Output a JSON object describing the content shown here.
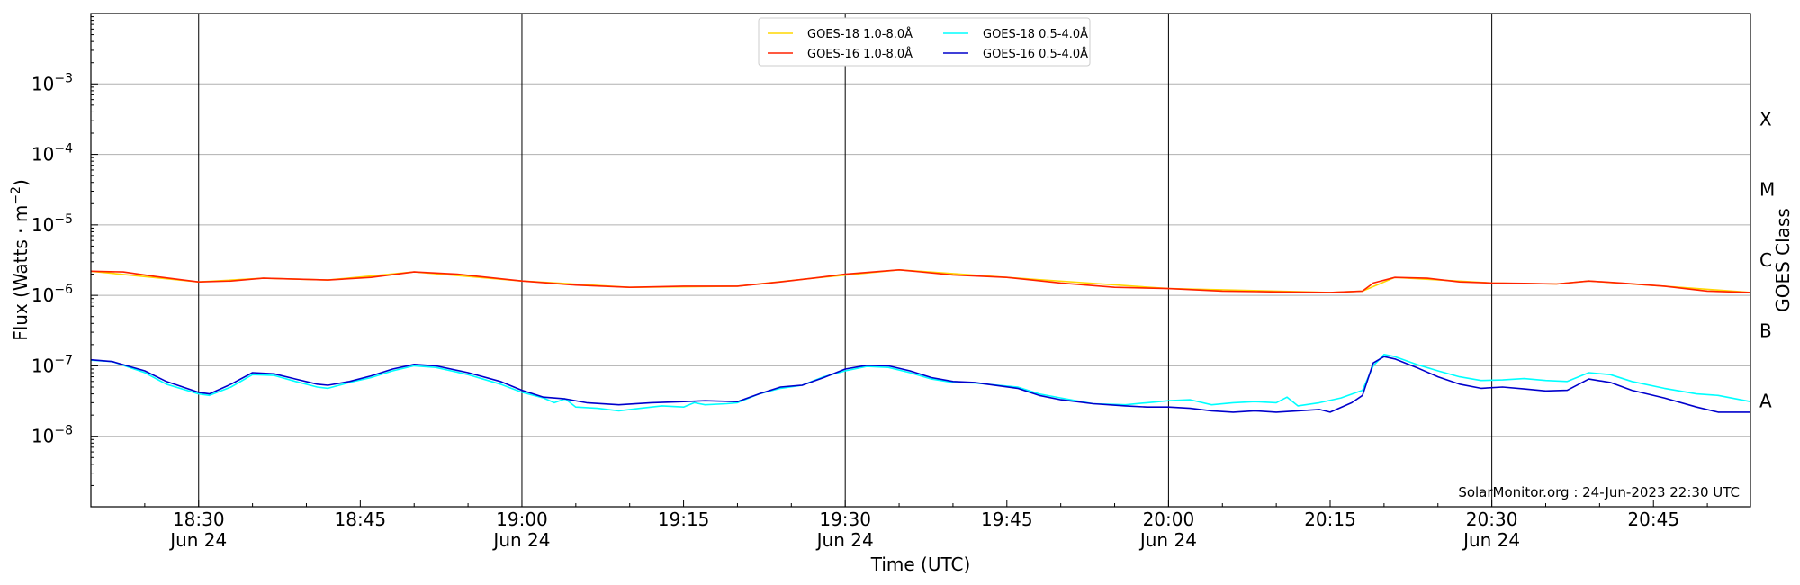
{
  "chart_data": {
    "type": "line",
    "title": "",
    "xlabel": "Time (UTC)",
    "ylabel": "Flux (Watts · m⁻²)",
    "ylabel_right": "GOES Class",
    "y_scale": "log",
    "ylim": [
      "1e-9",
      "1e-2"
    ],
    "x_range": [
      "18:20",
      "20:54"
    ],
    "grid": "horizontal at decades, vertical at half-hours",
    "legend_placement": "top-center",
    "x_ticks": [
      {
        "t": "18:30",
        "label": "18:30",
        "sub": "Jun 24"
      },
      {
        "t": "18:45",
        "label": "18:45",
        "sub": ""
      },
      {
        "t": "19:00",
        "label": "19:00",
        "sub": "Jun 24"
      },
      {
        "t": "19:15",
        "label": "19:15",
        "sub": ""
      },
      {
        "t": "19:30",
        "label": "19:30",
        "sub": "Jun 24"
      },
      {
        "t": "19:45",
        "label": "19:45",
        "sub": ""
      },
      {
        "t": "20:00",
        "label": "20:00",
        "sub": "Jun 24"
      },
      {
        "t": "20:15",
        "label": "20:15",
        "sub": ""
      },
      {
        "t": "20:30",
        "label": "20:30",
        "sub": "Jun 24"
      },
      {
        "t": "20:45",
        "label": "20:45",
        "sub": ""
      }
    ],
    "y_ticks": [
      {
        "exp": -8,
        "base": "10",
        "sup": "−8"
      },
      {
        "exp": -7,
        "base": "10",
        "sup": "−7"
      },
      {
        "exp": -6,
        "base": "10",
        "sup": "−6"
      },
      {
        "exp": -5,
        "base": "10",
        "sup": "−5"
      },
      {
        "exp": -4,
        "base": "10",
        "sup": "−4"
      },
      {
        "exp": -3,
        "base": "10",
        "sup": "−3"
      }
    ],
    "goes_classes": [
      {
        "label": "A",
        "exp": -7.5
      },
      {
        "label": "B",
        "exp": -6.5
      },
      {
        "label": "C",
        "exp": -5.5
      },
      {
        "label": "M",
        "exp": -4.5
      },
      {
        "label": "X",
        "exp": -3.5
      }
    ],
    "series": [
      {
        "name": "GOES-18 1.0-8.0Å",
        "color": "#FFD700",
        "points": [
          [
            "18:20",
            "2.2e-6"
          ],
          [
            "18:30",
            "1.55e-6"
          ],
          [
            "18:36",
            "1.75e-6"
          ],
          [
            "18:42",
            "1.65e-6"
          ],
          [
            "18:50",
            "2.15e-6"
          ],
          [
            "19:00",
            "1.6e-6"
          ],
          [
            "19:10",
            "1.3e-6"
          ],
          [
            "19:20",
            "1.35e-6"
          ],
          [
            "19:27",
            "1.75e-6"
          ],
          [
            "19:35",
            "2.3e-6"
          ],
          [
            "19:45",
            "1.8e-6"
          ],
          [
            "20:00",
            "1.25e-6"
          ],
          [
            "20:15",
            "1.1e-6"
          ],
          [
            "20:18",
            "1.15e-6"
          ],
          [
            "20:21",
            "1.8e-6"
          ],
          [
            "20:30",
            "1.5e-6"
          ],
          [
            "20:36",
            "1.45e-6"
          ],
          [
            "20:39",
            "1.6e-6"
          ],
          [
            "20:46",
            "1.35e-6"
          ],
          [
            "20:54",
            "1.1e-6"
          ]
        ]
      },
      {
        "name": "GOES-16 1.0-8.0Å",
        "color": "#FF2200",
        "points": [
          [
            "18:20",
            "2.2e-6"
          ],
          [
            "18:23",
            "2.15e-6"
          ],
          [
            "18:26",
            "1.85e-6"
          ],
          [
            "18:30",
            "1.55e-6"
          ],
          [
            "18:33",
            "1.6e-6"
          ],
          [
            "18:36",
            "1.75e-6"
          ],
          [
            "18:39",
            "1.7e-6"
          ],
          [
            "18:42",
            "1.65e-6"
          ],
          [
            "18:46",
            "1.8e-6"
          ],
          [
            "18:50",
            "2.15e-6"
          ],
          [
            "18:54",
            "2.0e-6"
          ],
          [
            "19:00",
            "1.6e-6"
          ],
          [
            "19:05",
            "1.4e-6"
          ],
          [
            "19:10",
            "1.3e-6"
          ],
          [
            "19:15",
            "1.35e-6"
          ],
          [
            "19:20",
            "1.35e-6"
          ],
          [
            "19:24",
            "1.55e-6"
          ],
          [
            "19:27",
            "1.75e-6"
          ],
          [
            "19:30",
            "2.0e-6"
          ],
          [
            "19:35",
            "2.3e-6"
          ],
          [
            "19:40",
            "1.95e-6"
          ],
          [
            "19:45",
            "1.8e-6"
          ],
          [
            "19:50",
            "1.5e-6"
          ],
          [
            "19:55",
            "1.3e-6"
          ],
          [
            "20:00",
            "1.25e-6"
          ],
          [
            "20:05",
            "1.15e-6"
          ],
          [
            "20:10",
            "1.12e-6"
          ],
          [
            "20:15",
            "1.1e-6"
          ],
          [
            "20:18",
            "1.15e-6"
          ],
          [
            "20:19",
            "1.5e-6"
          ],
          [
            "20:21",
            "1.8e-6"
          ],
          [
            "20:24",
            "1.75e-6"
          ],
          [
            "20:27",
            "1.55e-6"
          ],
          [
            "20:30",
            "1.5e-6"
          ],
          [
            "20:33",
            "1.48e-6"
          ],
          [
            "20:36",
            "1.45e-6"
          ],
          [
            "20:39",
            "1.6e-6"
          ],
          [
            "20:42",
            "1.5e-6"
          ],
          [
            "20:46",
            "1.35e-6"
          ],
          [
            "20:50",
            "1.15e-6"
          ],
          [
            "20:54",
            "1.1e-6"
          ]
        ]
      },
      {
        "name": "GOES-18 0.5-4.0Å",
        "color": "#00FFFF",
        "points": [
          [
            "18:20",
            "1.2e-7"
          ],
          [
            "18:22",
            "1.15e-7"
          ],
          [
            "18:25",
            "8.0e-8"
          ],
          [
            "18:27",
            "5.5e-8"
          ],
          [
            "18:30",
            "4.0e-8"
          ],
          [
            "18:31",
            "3.8e-8"
          ],
          [
            "18:33",
            "5.0e-8"
          ],
          [
            "18:35",
            "7.5e-8"
          ],
          [
            "18:37",
            "7.3e-8"
          ],
          [
            "18:39",
            "6.0e-8"
          ],
          [
            "18:41",
            "5.0e-8"
          ],
          [
            "18:42",
            "4.8e-8"
          ],
          [
            "18:44",
            "5.8e-8"
          ],
          [
            "18:46",
            "6.8e-8"
          ],
          [
            "18:48",
            "8.5e-8"
          ],
          [
            "18:50",
            "1.0e-7"
          ],
          [
            "18:52",
            "9.5e-8"
          ],
          [
            "18:55",
            "7.5e-8"
          ],
          [
            "18:58",
            "5.5e-8"
          ],
          [
            "19:00",
            "4.2e-8"
          ],
          [
            "19:02",
            "3.5e-8"
          ],
          [
            "19:03",
            "3.0e-8"
          ],
          [
            "19:04",
            "3.4e-8"
          ],
          [
            "19:05",
            "2.6e-8"
          ],
          [
            "19:07",
            "2.5e-8"
          ],
          [
            "19:09",
            "2.3e-8"
          ],
          [
            "19:11",
            "2.5e-8"
          ],
          [
            "19:13",
            "2.7e-8"
          ],
          [
            "19:15",
            "2.6e-8"
          ],
          [
            "19:16",
            "3.0e-8"
          ],
          [
            "19:17",
            "2.8e-8"
          ],
          [
            "19:19",
            "2.9e-8"
          ],
          [
            "19:20",
            "3.0e-8"
          ],
          [
            "19:22",
            "4.0e-8"
          ],
          [
            "19:24",
            "4.8e-8"
          ],
          [
            "19:26",
            "5.3e-8"
          ],
          [
            "19:28",
            "7.0e-8"
          ],
          [
            "19:30",
            "8.5e-8"
          ],
          [
            "19:32",
            "9.8e-8"
          ],
          [
            "19:34",
            "9.5e-8"
          ],
          [
            "19:36",
            "8.0e-8"
          ],
          [
            "19:38",
            "6.5e-8"
          ],
          [
            "19:40",
            "5.8e-8"
          ],
          [
            "19:42",
            "5.7e-8"
          ],
          [
            "19:46",
            "5.0e-8"
          ],
          [
            "19:48",
            "4.0e-8"
          ],
          [
            "19:50",
            "3.5e-8"
          ],
          [
            "19:53",
            "2.9e-8"
          ],
          [
            "19:56",
            "2.8e-8"
          ],
          [
            "19:58",
            "3.0e-8"
          ],
          [
            "20:00",
            "3.2e-8"
          ],
          [
            "20:02",
            "3.3e-8"
          ],
          [
            "20:04",
            "2.8e-8"
          ],
          [
            "20:06",
            "3.0e-8"
          ],
          [
            "20:08",
            "3.1e-8"
          ],
          [
            "20:10",
            "3.0e-8"
          ],
          [
            "20:11",
            "3.6e-8"
          ],
          [
            "20:12",
            "2.7e-8"
          ],
          [
            "20:14",
            "3.0e-8"
          ],
          [
            "20:16",
            "3.5e-8"
          ],
          [
            "20:18",
            "4.5e-8"
          ],
          [
            "20:19",
            "1.0e-7"
          ],
          [
            "20:20",
            "1.45e-7"
          ],
          [
            "20:21",
            "1.35e-7"
          ],
          [
            "20:23",
            "1.05e-7"
          ],
          [
            "20:25",
            "8.5e-8"
          ],
          [
            "20:27",
            "7.0e-8"
          ],
          [
            "20:29",
            "6.2e-8"
          ],
          [
            "20:31",
            "6.3e-8"
          ],
          [
            "20:33",
            "6.6e-8"
          ],
          [
            "20:35",
            "6.2e-8"
          ],
          [
            "20:37",
            "6.0e-8"
          ],
          [
            "20:39",
            "8.0e-8"
          ],
          [
            "20:41",
            "7.5e-8"
          ],
          [
            "20:43",
            "6.0e-8"
          ],
          [
            "20:46",
            "4.8e-8"
          ],
          [
            "20:49",
            "4.0e-8"
          ],
          [
            "20:51",
            "3.8e-8"
          ],
          [
            "20:54",
            "3.1e-8"
          ]
        ]
      },
      {
        "name": "GOES-16 0.5-4.0Å",
        "color": "#0000CC",
        "points": [
          [
            "18:20",
            "1.22e-7"
          ],
          [
            "18:22",
            "1.15e-7"
          ],
          [
            "18:25",
            "8.5e-8"
          ],
          [
            "18:27",
            "6.0e-8"
          ],
          [
            "18:30",
            "4.2e-8"
          ],
          [
            "18:31",
            "4.0e-8"
          ],
          [
            "18:33",
            "5.5e-8"
          ],
          [
            "18:35",
            "8.0e-8"
          ],
          [
            "18:37",
            "7.7e-8"
          ],
          [
            "18:39",
            "6.5e-8"
          ],
          [
            "18:41",
            "5.5e-8"
          ],
          [
            "18:42",
            "5.3e-8"
          ],
          [
            "18:44",
            "6.0e-8"
          ],
          [
            "18:46",
            "7.2e-8"
          ],
          [
            "18:48",
            "9.0e-8"
          ],
          [
            "18:50",
            "1.05e-7"
          ],
          [
            "18:52",
            "1.0e-7"
          ],
          [
            "18:55",
            "8.0e-8"
          ],
          [
            "18:58",
            "6.0e-8"
          ],
          [
            "19:00",
            "4.5e-8"
          ],
          [
            "19:02",
            "3.6e-8"
          ],
          [
            "19:04",
            "3.4e-8"
          ],
          [
            "19:06",
            "3.0e-8"
          ],
          [
            "19:09",
            "2.8e-8"
          ],
          [
            "19:12",
            "3.0e-8"
          ],
          [
            "19:15",
            "3.1e-8"
          ],
          [
            "19:17",
            "3.2e-8"
          ],
          [
            "19:20",
            "3.1e-8"
          ],
          [
            "19:22",
            "4.0e-8"
          ],
          [
            "19:24",
            "5.0e-8"
          ],
          [
            "19:26",
            "5.3e-8"
          ],
          [
            "19:28",
            "6.8e-8"
          ],
          [
            "19:30",
            "9.0e-8"
          ],
          [
            "19:32",
            "1.02e-7"
          ],
          [
            "19:34",
            "1.0e-7"
          ],
          [
            "19:36",
            "8.5e-8"
          ],
          [
            "19:38",
            "6.8e-8"
          ],
          [
            "19:40",
            "6.0e-8"
          ],
          [
            "19:42",
            "5.8e-8"
          ],
          [
            "19:46",
            "4.8e-8"
          ],
          [
            "19:48",
            "3.8e-8"
          ],
          [
            "19:50",
            "3.3e-8"
          ],
          [
            "19:53",
            "2.9e-8"
          ],
          [
            "19:56",
            "2.7e-8"
          ],
          [
            "19:58",
            "2.6e-8"
          ],
          [
            "20:00",
            "2.6e-8"
          ],
          [
            "20:02",
            "2.5e-8"
          ],
          [
            "20:04",
            "2.3e-8"
          ],
          [
            "20:06",
            "2.2e-8"
          ],
          [
            "20:08",
            "2.3e-8"
          ],
          [
            "20:10",
            "2.2e-8"
          ],
          [
            "20:12",
            "2.3e-8"
          ],
          [
            "20:14",
            "2.4e-8"
          ],
          [
            "20:15",
            "2.2e-8"
          ],
          [
            "20:17",
            "3.0e-8"
          ],
          [
            "20:18",
            "3.8e-8"
          ],
          [
            "20:19",
            "1.1e-7"
          ],
          [
            "20:20",
            "1.35e-7"
          ],
          [
            "20:21",
            "1.25e-7"
          ],
          [
            "20:23",
            "9.5e-8"
          ],
          [
            "20:25",
            "7.0e-8"
          ],
          [
            "20:27",
            "5.5e-8"
          ],
          [
            "20:29",
            "4.8e-8"
          ],
          [
            "20:31",
            "5.0e-8"
          ],
          [
            "20:33",
            "4.7e-8"
          ],
          [
            "20:35",
            "4.4e-8"
          ],
          [
            "20:37",
            "4.5e-8"
          ],
          [
            "20:39",
            "6.5e-8"
          ],
          [
            "20:41",
            "5.8e-8"
          ],
          [
            "20:43",
            "4.5e-8"
          ],
          [
            "20:46",
            "3.5e-8"
          ],
          [
            "20:49",
            "2.6e-8"
          ],
          [
            "20:51",
            "2.2e-8"
          ],
          [
            "20:54",
            "2.2e-8"
          ]
        ]
      }
    ]
  },
  "footer": {
    "credit": "SolarMonitor.org : 24-Jun-2023 22:30 UTC"
  }
}
